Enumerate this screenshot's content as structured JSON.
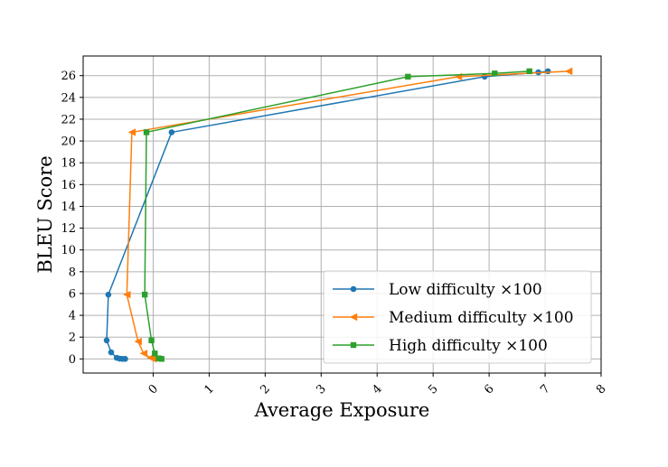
{
  "chart_data": {
    "type": "line",
    "title": "",
    "xlabel": "Average Exposure",
    "ylabel": "BLEU Score",
    "xlim": [
      -1.25,
      8.0
    ],
    "ylim": [
      -1.3,
      27.8
    ],
    "xticks": [
      0,
      1,
      2,
      3,
      4,
      5,
      6,
      7,
      8
    ],
    "yticks": [
      0,
      2,
      4,
      6,
      8,
      10,
      12,
      14,
      16,
      18,
      20,
      22,
      24,
      26
    ],
    "grid": true,
    "legend_position": "lower-right",
    "series": [
      {
        "name": "Low difficulty ×100",
        "color": "#1f77b4",
        "marker": "circle",
        "x": [
          7.05,
          6.88,
          5.92,
          0.33,
          -0.8,
          -0.83,
          -0.75,
          -0.65,
          -0.6,
          -0.55,
          -0.5
        ],
        "y": [
          26.4,
          26.3,
          25.9,
          20.8,
          5.9,
          1.7,
          0.6,
          0.1,
          0.02,
          0.0,
          0.0
        ]
      },
      {
        "name": "Medium difficulty ×100",
        "color": "#ff7f0e",
        "marker": "triangle-left",
        "x": [
          7.42,
          5.45,
          -0.38,
          -0.47,
          -0.27,
          -0.17,
          -0.05,
          0.0
        ],
        "y": [
          26.4,
          25.9,
          20.8,
          5.9,
          1.6,
          0.5,
          0.1,
          0.0
        ]
      },
      {
        "name": "High difficulty ×100",
        "color": "#2ca02c",
        "marker": "square",
        "x": [
          6.72,
          6.1,
          4.55,
          -0.12,
          -0.15,
          -0.03,
          0.03,
          0.1,
          0.15
        ],
        "y": [
          26.4,
          26.2,
          25.9,
          20.8,
          5.9,
          1.7,
          0.5,
          0.05,
          0.0
        ]
      }
    ],
    "legend_labels": [
      "Low difficulty ×100",
      "Medium difficulty ×100",
      "High difficulty ×100"
    ]
  }
}
